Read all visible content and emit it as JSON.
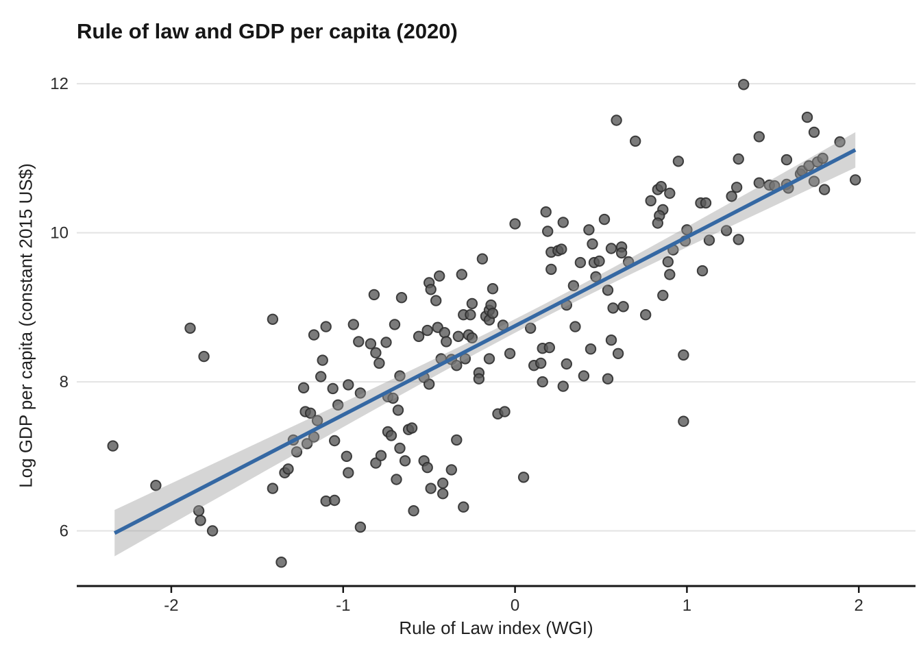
{
  "figure": {
    "title": "Rule of law and GDP per capita (2020)"
  },
  "chart_data": {
    "type": "scatter",
    "title": "Rule of law and GDP per capita (2020)",
    "xlabel": "Rule of Law index (WGI)",
    "ylabel": "Log GDP per capita (constant 2015 US$)",
    "xlim": [
      -2.55,
      2.33
    ],
    "ylim": [
      5.26,
      12.25
    ],
    "xticks": [
      -2,
      -1,
      0,
      1,
      2
    ],
    "yticks": [
      6,
      8,
      10,
      12
    ],
    "grid": "horizontal-major-only",
    "legend": "none",
    "trend": {
      "type": "linear-fit-with-ci",
      "slope": 1.193,
      "intercept": 8.75,
      "x_start": -2.33,
      "x_end": 1.98,
      "ci_half_width_min": 0.09,
      "ci_half_width_slope": 0.12,
      "ci_center_x": 0.15
    },
    "colors": {
      "point_fill": "#5a5a5a",
      "point_stroke": "#2f2f2f",
      "trend_line": "#3568A3",
      "ci_band": "#9a9a9a",
      "gridline": "#e3e3e3",
      "axis": "#161616",
      "tick_text": "#2b2b2b"
    },
    "points": [
      [
        -2.34,
        7.14
      ],
      [
        -2.09,
        6.61
      ],
      [
        -1.89,
        8.72
      ],
      [
        -1.84,
        6.27
      ],
      [
        -1.83,
        6.14
      ],
      [
        -1.81,
        8.34
      ],
      [
        -1.76,
        6.0
      ],
      [
        -1.41,
        8.84
      ],
      [
        -1.41,
        6.57
      ],
      [
        -1.36,
        5.58
      ],
      [
        -1.34,
        6.78
      ],
      [
        -1.32,
        6.83
      ],
      [
        -1.29,
        7.22
      ],
      [
        -1.27,
        7.06
      ],
      [
        -1.23,
        7.92
      ],
      [
        -1.22,
        7.6
      ],
      [
        -1.19,
        7.58
      ],
      [
        -1.21,
        7.17
      ],
      [
        -1.17,
        8.63
      ],
      [
        -1.17,
        7.26
      ],
      [
        -1.15,
        7.48
      ],
      [
        -1.13,
        8.07
      ],
      [
        -1.12,
        8.29
      ],
      [
        -1.1,
        8.74
      ],
      [
        -1.1,
        6.4
      ],
      [
        -1.06,
        7.91
      ],
      [
        -1.05,
        7.21
      ],
      [
        -1.05,
        6.41
      ],
      [
        -1.03,
        7.69
      ],
      [
        -0.98,
        7.0
      ],
      [
        -0.97,
        7.96
      ],
      [
        -0.97,
        6.78
      ],
      [
        -0.94,
        8.77
      ],
      [
        -0.91,
        8.54
      ],
      [
        -0.9,
        7.85
      ],
      [
        -0.9,
        6.05
      ],
      [
        -0.84,
        8.51
      ],
      [
        -0.82,
        9.17
      ],
      [
        -0.81,
        8.39
      ],
      [
        -0.81,
        6.91
      ],
      [
        -0.79,
        8.25
      ],
      [
        -0.78,
        7.01
      ],
      [
        -0.75,
        8.53
      ],
      [
        -0.74,
        7.8
      ],
      [
        -0.71,
        7.78
      ],
      [
        -0.74,
        7.33
      ],
      [
        -0.72,
        7.28
      ],
      [
        -0.7,
        8.77
      ],
      [
        -0.69,
        6.69
      ],
      [
        -0.68,
        7.62
      ],
      [
        -0.67,
        8.08
      ],
      [
        -0.67,
        7.11
      ],
      [
        -0.66,
        9.13
      ],
      [
        -0.64,
        6.94
      ],
      [
        -0.62,
        7.36
      ],
      [
        -0.6,
        7.38
      ],
      [
        -0.59,
        6.27
      ],
      [
        -0.56,
        8.61
      ],
      [
        -0.53,
        8.06
      ],
      [
        -0.53,
        6.94
      ],
      [
        -0.51,
        8.69
      ],
      [
        -0.51,
        6.85
      ],
      [
        -0.5,
        9.33
      ],
      [
        -0.5,
        7.97
      ],
      [
        -0.49,
        9.24
      ],
      [
        -0.49,
        6.57
      ],
      [
        -0.46,
        9.09
      ],
      [
        -0.45,
        8.73
      ],
      [
        -0.44,
        9.42
      ],
      [
        -0.43,
        8.31
      ],
      [
        -0.42,
        6.64
      ],
      [
        -0.42,
        6.5
      ],
      [
        -0.41,
        8.66
      ],
      [
        -0.4,
        8.54
      ],
      [
        -0.37,
        8.3
      ],
      [
        -0.37,
        6.82
      ],
      [
        -0.34,
        8.22
      ],
      [
        -0.34,
        7.22
      ],
      [
        -0.33,
        8.61
      ],
      [
        -0.31,
        9.44
      ],
      [
        -0.3,
        8.9
      ],
      [
        -0.3,
        6.32
      ],
      [
        -0.29,
        8.31
      ],
      [
        -0.27,
        8.63
      ],
      [
        -0.25,
        8.59
      ],
      [
        -0.26,
        8.9
      ],
      [
        -0.25,
        9.05
      ],
      [
        -0.21,
        8.12
      ],
      [
        -0.21,
        8.04
      ],
      [
        -0.19,
        9.65
      ],
      [
        -0.17,
        8.88
      ],
      [
        -0.15,
        8.96
      ],
      [
        -0.15,
        8.83
      ],
      [
        -0.15,
        8.31
      ],
      [
        -0.14,
        9.03
      ],
      [
        -0.13,
        9.25
      ],
      [
        -0.13,
        8.92
      ],
      [
        -0.1,
        7.57
      ],
      [
        -0.06,
        7.6
      ],
      [
        -0.07,
        8.76
      ],
      [
        -0.03,
        8.38
      ],
      [
        0.0,
        10.12
      ],
      [
        0.05,
        6.72
      ],
      [
        0.09,
        8.72
      ],
      [
        0.11,
        8.22
      ],
      [
        0.15,
        8.25
      ],
      [
        0.16,
        8.45
      ],
      [
        0.2,
        8.46
      ],
      [
        0.16,
        8.0
      ],
      [
        0.18,
        10.28
      ],
      [
        0.19,
        10.02
      ],
      [
        0.21,
        9.74
      ],
      [
        0.25,
        9.76
      ],
      [
        0.27,
        9.78
      ],
      [
        0.21,
        9.51
      ],
      [
        0.28,
        10.14
      ],
      [
        0.28,
        7.94
      ],
      [
        0.3,
        9.03
      ],
      [
        0.3,
        8.24
      ],
      [
        0.34,
        9.29
      ],
      [
        0.35,
        8.74
      ],
      [
        0.38,
        9.6
      ],
      [
        0.4,
        8.08
      ],
      [
        0.43,
        10.04
      ],
      [
        0.44,
        8.44
      ],
      [
        0.45,
        9.85
      ],
      [
        0.46,
        9.6
      ],
      [
        0.49,
        9.62
      ],
      [
        0.47,
        9.41
      ],
      [
        0.52,
        10.18
      ],
      [
        0.54,
        9.23
      ],
      [
        0.54,
        8.04
      ],
      [
        0.56,
        9.79
      ],
      [
        0.56,
        8.56
      ],
      [
        0.57,
        8.99
      ],
      [
        0.59,
        11.51
      ],
      [
        0.6,
        8.38
      ],
      [
        0.62,
        9.81
      ],
      [
        0.62,
        9.73
      ],
      [
        0.63,
        9.01
      ],
      [
        0.66,
        9.61
      ],
      [
        0.7,
        11.23
      ],
      [
        0.76,
        8.9
      ],
      [
        0.79,
        10.43
      ],
      [
        0.83,
        10.58
      ],
      [
        0.85,
        10.62
      ],
      [
        0.9,
        10.53
      ],
      [
        0.86,
        10.31
      ],
      [
        0.84,
        10.23
      ],
      [
        0.83,
        10.13
      ],
      [
        0.86,
        9.16
      ],
      [
        0.89,
        9.61
      ],
      [
        0.9,
        9.44
      ],
      [
        0.92,
        9.77
      ],
      [
        0.95,
        10.96
      ],
      [
        0.98,
        8.36
      ],
      [
        0.98,
        7.47
      ],
      [
        0.99,
        9.89
      ],
      [
        1.0,
        10.04
      ],
      [
        1.08,
        10.4
      ],
      [
        1.11,
        10.4
      ],
      [
        1.09,
        9.49
      ],
      [
        1.13,
        9.9
      ],
      [
        1.23,
        10.03
      ],
      [
        1.26,
        10.49
      ],
      [
        1.29,
        10.61
      ],
      [
        1.3,
        10.99
      ],
      [
        1.3,
        9.91
      ],
      [
        1.33,
        11.99
      ],
      [
        1.42,
        11.29
      ],
      [
        1.42,
        10.67
      ],
      [
        1.48,
        10.64
      ],
      [
        1.51,
        10.63
      ],
      [
        1.58,
        10.98
      ],
      [
        1.58,
        10.65
      ],
      [
        1.59,
        10.6
      ],
      [
        1.66,
        10.79
      ],
      [
        1.67,
        10.83
      ],
      [
        1.7,
        11.55
      ],
      [
        1.71,
        10.9
      ],
      [
        1.74,
        11.35
      ],
      [
        1.74,
        10.69
      ],
      [
        1.76,
        10.95
      ],
      [
        1.79,
        11.0
      ],
      [
        1.8,
        10.58
      ],
      [
        1.89,
        11.22
      ],
      [
        1.98,
        10.71
      ]
    ]
  }
}
